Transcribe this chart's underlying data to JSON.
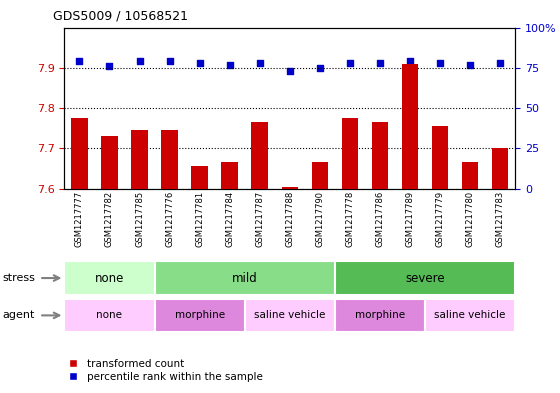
{
  "title": "GDS5009 / 10568521",
  "samples": [
    "GSM1217777",
    "GSM1217782",
    "GSM1217785",
    "GSM1217776",
    "GSM1217781",
    "GSM1217784",
    "GSM1217787",
    "GSM1217788",
    "GSM1217790",
    "GSM1217778",
    "GSM1217786",
    "GSM1217789",
    "GSM1217779",
    "GSM1217780",
    "GSM1217783"
  ],
  "bar_values": [
    7.775,
    7.73,
    7.745,
    7.745,
    7.655,
    7.665,
    7.765,
    7.605,
    7.665,
    7.775,
    7.765,
    7.91,
    7.755,
    7.665,
    7.7
  ],
  "percentile_values": [
    79,
    76,
    79,
    79,
    78,
    77,
    78,
    73,
    75,
    78,
    78,
    79,
    78,
    77,
    78
  ],
  "bar_color": "#cc0000",
  "dot_color": "#0000cc",
  "ylim_left": [
    7.6,
    8.0
  ],
  "ylim_right": [
    0,
    100
  ],
  "yticks_left": [
    7.6,
    7.7,
    7.8,
    7.9
  ],
  "yticks_right": [
    0,
    25,
    50,
    75,
    100
  ],
  "yticklabels_right": [
    "0",
    "25",
    "50",
    "75",
    "100%"
  ],
  "stress_groups": [
    {
      "label": "none",
      "start": 0,
      "end": 3,
      "color": "#ccffcc"
    },
    {
      "label": "mild",
      "start": 3,
      "end": 9,
      "color": "#88dd88"
    },
    {
      "label": "severe",
      "start": 9,
      "end": 15,
      "color": "#55bb55"
    }
  ],
  "agent_groups": [
    {
      "label": "none",
      "start": 0,
      "end": 3,
      "color": "#ffccff"
    },
    {
      "label": "morphine",
      "start": 3,
      "end": 6,
      "color": "#dd88dd"
    },
    {
      "label": "saline vehicle",
      "start": 6,
      "end": 9,
      "color": "#ffccff"
    },
    {
      "label": "morphine",
      "start": 9,
      "end": 12,
      "color": "#dd88dd"
    },
    {
      "label": "saline vehicle",
      "start": 12,
      "end": 15,
      "color": "#ffccff"
    }
  ],
  "legend_red_label": "transformed count",
  "legend_blue_label": "percentile rank within the sample",
  "bar_color_legend": "#cc0000",
  "dot_color_legend": "#0000cc",
  "tick_area_bg": "#cccccc",
  "plot_bg_color": "#ffffff"
}
